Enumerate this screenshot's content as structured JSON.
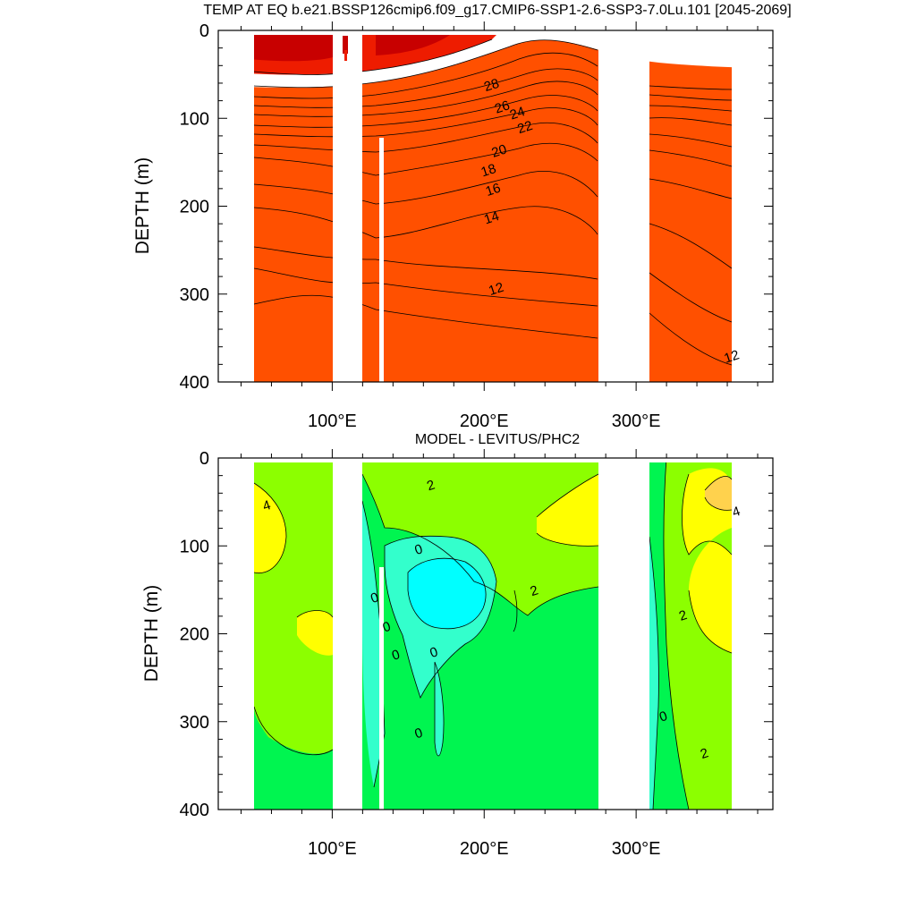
{
  "chart_data": [
    {
      "type": "heatmap",
      "title": "TEMP AT EQ b.e21.BSSP126cmip6.f09_g17.CMIP6-SSP1-2.6-SSP3-7.0Lu.101 [2045-2069]",
      "xlabel": "",
      "ylabel": "DEPTH (m)",
      "xlim": [
        25,
        390
      ],
      "ylim": [
        400,
        0
      ],
      "x_ticks": [
        100,
        200,
        300
      ],
      "x_tick_labels": [
        "100°E",
        "200°E",
        "300°E"
      ],
      "y_ticks": [
        0,
        100,
        200,
        300,
        400
      ],
      "y_tick_labels": [
        "0",
        "100",
        "200",
        "300",
        "400"
      ],
      "ocean_segments": [
        [
          42,
          98
        ],
        [
          118,
          129
        ],
        [
          132,
          279
        ],
        [
          315,
          369
        ]
      ],
      "contour_labels": [
        {
          "text": "28",
          "x": 205,
          "y": 63
        },
        {
          "text": "26",
          "x": 212,
          "y": 88
        },
        {
          "text": "24",
          "x": 222,
          "y": 95
        },
        {
          "text": "22",
          "x": 227,
          "y": 111
        },
        {
          "text": "20",
          "x": 210,
          "y": 138
        },
        {
          "text": "18",
          "x": 203,
          "y": 160
        },
        {
          "text": "16",
          "x": 206,
          "y": 182
        },
        {
          "text": "14",
          "x": 205,
          "y": 214
        },
        {
          "text": "12",
          "x": 208,
          "y": 295
        },
        {
          "text": "12",
          "x": 363,
          "y": 372
        }
      ],
      "colors": [
        "#0a3cff",
        "#0a78ff",
        "#14b4ff",
        "#3cdcff",
        "#00ffff",
        "#00f0b4",
        "#00e664",
        "#33dd00",
        "#99e600",
        "#ffff00",
        "#ffd200",
        "#ffaa00",
        "#ff7f00",
        "#ff5000",
        "#ee1c00",
        "#c80000"
      ]
    },
    {
      "type": "heatmap",
      "title": "MODEL - LEVITUS/PHC2",
      "xlabel": "",
      "ylabel": "DEPTH (m)",
      "xlim": [
        25,
        390
      ],
      "ylim": [
        400,
        0
      ],
      "x_ticks": [
        100,
        200,
        300
      ],
      "x_tick_labels": [
        "100°E",
        "200°E",
        "300°E"
      ],
      "y_ticks": [
        0,
        100,
        200,
        300,
        400
      ],
      "y_tick_labels": [
        "0",
        "100",
        "200",
        "300",
        "400"
      ],
      "ocean_segments": [
        [
          42,
          98
        ],
        [
          118,
          129
        ],
        [
          132,
          279
        ],
        [
          315,
          369
        ]
      ],
      "contour_labels": [
        {
          "text": "4",
          "x": 57,
          "y": 55
        },
        {
          "text": "2",
          "x": 165,
          "y": 32
        },
        {
          "text": "0",
          "x": 157,
          "y": 105
        },
        {
          "text": "2",
          "x": 233,
          "y": 152
        },
        {
          "text": "0",
          "x": 128,
          "y": 160
        },
        {
          "text": "0",
          "x": 136,
          "y": 193
        },
        {
          "text": "0",
          "x": 142,
          "y": 225
        },
        {
          "text": "0",
          "x": 167,
          "y": 222
        },
        {
          "text": "0",
          "x": 157,
          "y": 314
        },
        {
          "text": "0",
          "x": 318,
          "y": 295
        },
        {
          "text": "2",
          "x": 331,
          "y": 180
        },
        {
          "text": "2",
          "x": 345,
          "y": 337
        },
        {
          "text": "4",
          "x": 366,
          "y": 62
        }
      ],
      "colors": [
        "#00ffff",
        "#33ffcc",
        "#00f550",
        "#8cff00",
        "#ffff00",
        "#ffd24d"
      ]
    }
  ]
}
